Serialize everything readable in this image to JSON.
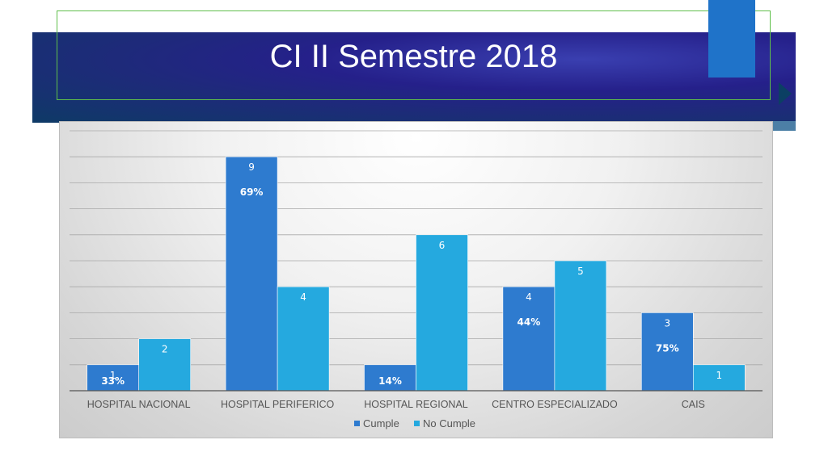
{
  "slide": {
    "title": "CI II Semestre 2018"
  },
  "colors": {
    "cumple": "#2E7BCF",
    "no_cumple": "#25A9DF",
    "title_band": "#25208a",
    "accent": "#1f73c9",
    "frame": "#5fbf4a"
  },
  "chart_data": {
    "type": "bar",
    "categories": [
      "HOSPITAL NACIONAL",
      "HOSPITAL PERIFERICO",
      "HOSPITAL REGIONAL",
      "CENTRO ESPECIALIZADO",
      "CAIS"
    ],
    "series": [
      {
        "name": "Cumple",
        "values": [
          1,
          9,
          1,
          4,
          3
        ],
        "labels": [
          "1",
          "9",
          "",
          "4",
          "3"
        ],
        "percents": [
          "33%",
          "69%",
          "14%",
          "44%",
          "75%"
        ]
      },
      {
        "name": "No Cumple",
        "values": [
          2,
          4,
          6,
          5,
          1
        ],
        "labels": [
          "2",
          "4",
          "6",
          "5",
          "1"
        ]
      }
    ],
    "ylim": [
      0,
      10
    ],
    "grid": true,
    "legend": "bottom"
  }
}
